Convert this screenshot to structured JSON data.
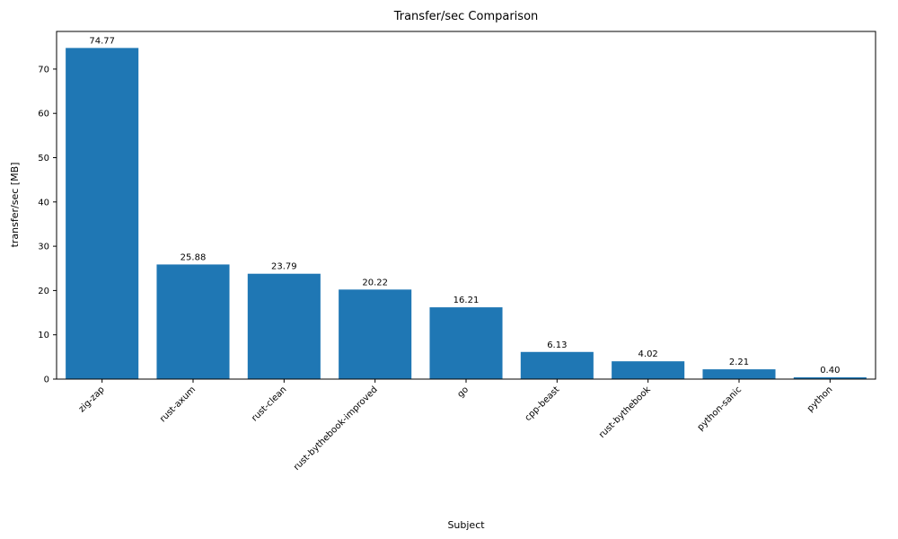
{
  "chart_data": {
    "type": "bar",
    "title": "Transfer/sec Comparison",
    "xlabel": "Subject",
    "ylabel": "transfer/sec [MB]",
    "categories": [
      "zig-zap",
      "rust-axum",
      "rust-clean",
      "rust-bythebook-improved",
      "go",
      "cpp-beast",
      "rust-bythebook",
      "python-sanic",
      "python"
    ],
    "values": [
      74.77,
      25.88,
      23.79,
      20.22,
      16.21,
      6.13,
      4.02,
      2.21,
      0.4
    ],
    "value_labels": [
      "74.77",
      "25.88",
      "23.79",
      "20.22",
      "16.21",
      "6.13",
      "4.02",
      "2.21",
      "0.40"
    ],
    "ylim": [
      0,
      78.5
    ],
    "yticks": [
      0,
      10,
      20,
      30,
      40,
      50,
      60,
      70
    ],
    "bar_color": "#1f77b4",
    "axis_color": "#000000",
    "grid": "off",
    "legend": "none",
    "x_tick_rotation": 45
  }
}
